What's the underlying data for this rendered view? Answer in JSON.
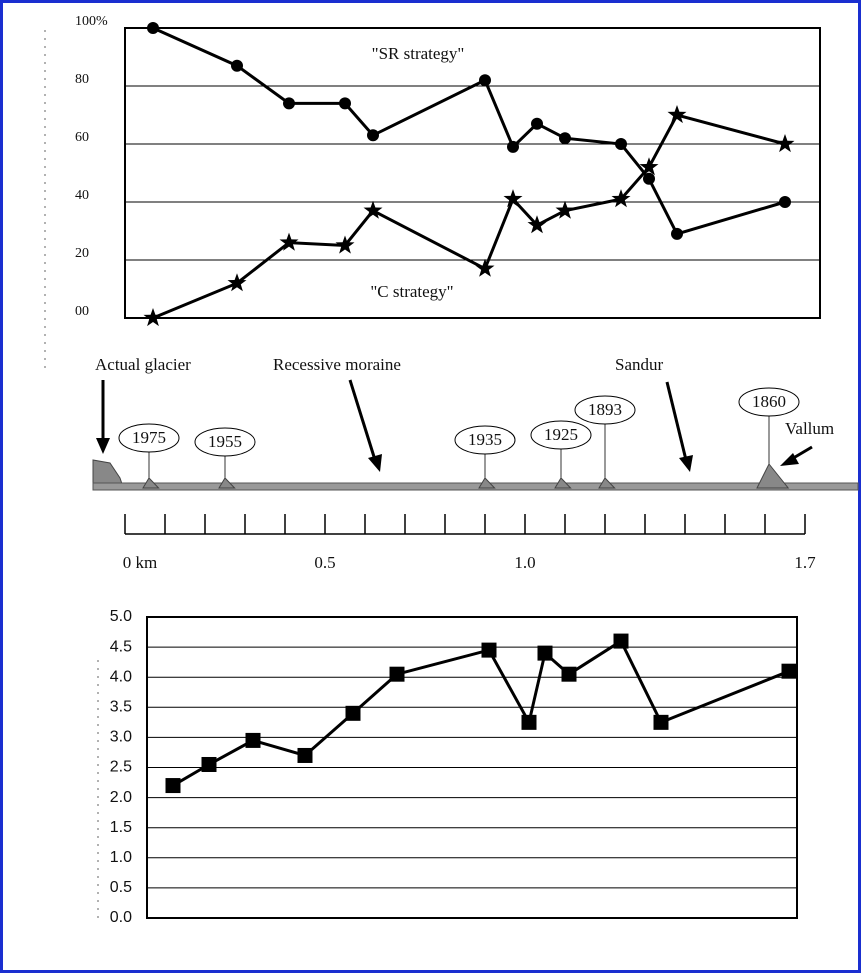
{
  "chart_data": [
    {
      "type": "line",
      "x": [
        0.07,
        0.28,
        0.41,
        0.55,
        0.62,
        0.9,
        0.97,
        1.03,
        1.1,
        1.24,
        1.31,
        1.38,
        1.65
      ],
      "xlim": [
        0,
        1.7375
      ],
      "ylim": [
        0,
        100
      ],
      "yticks": [
        {
          "value": 0,
          "label": "00"
        },
        20,
        40,
        60,
        80,
        {
          "value": 100,
          "label": "100%"
        }
      ],
      "grid": true,
      "annotations": [
        "\"SR strategy\"",
        "\"C strategy\""
      ],
      "series": [
        {
          "marker": "circle",
          "color": "#000000",
          "values": [
            100,
            87,
            74,
            74,
            63,
            82,
            59,
            67,
            62,
            60,
            48,
            29,
            40
          ]
        },
        {
          "marker": "star",
          "color": "#000000",
          "values": [
            0,
            12,
            26,
            25,
            37,
            17,
            41,
            32,
            37,
            41,
            52,
            70,
            60
          ]
        }
      ]
    },
    {
      "type": "line",
      "x": [
        0.12,
        0.21,
        0.32,
        0.45,
        0.57,
        0.68,
        0.91,
        1.01,
        1.05,
        1.11,
        1.24,
        1.34,
        1.66
      ],
      "xlim": [
        0.055,
        1.68
      ],
      "ylim": [
        0,
        5
      ],
      "yticks": [
        {
          "value": 0,
          "label": "0.0"
        },
        0.5,
        {
          "value": 1,
          "label": "1.0"
        },
        1.5,
        {
          "value": 2,
          "label": "2.0"
        },
        2.5,
        {
          "value": 3,
          "label": "3.0"
        },
        3.5,
        {
          "value": 4,
          "label": "4.0"
        },
        4.5,
        {
          "value": 5,
          "label": "5.0"
        }
      ],
      "grid": true,
      "series": [
        {
          "marker": "square",
          "color": "#000000",
          "values": [
            2.2,
            2.55,
            2.95,
            2.7,
            3.4,
            4.05,
            4.45,
            3.25,
            4.4,
            4.05,
            4.6,
            3.25,
            4.1
          ]
        }
      ]
    }
  ],
  "transect": {
    "labels": [
      "Actual glacier",
      "Recessive moraine",
      "Sandur",
      "Vallum"
    ],
    "markers": [
      {
        "label": "1975",
        "km": 0.06
      },
      {
        "label": "1955",
        "km": 0.25
      },
      {
        "label": "1935",
        "km": 0.9
      },
      {
        "label": "1925",
        "km": 1.09
      },
      {
        "label": "1893",
        "km": 1.2
      },
      {
        "label": "1860",
        "km": 1.61
      }
    ],
    "kmticks": [
      0,
      0.1,
      0.2,
      0.3,
      0.4,
      0.5,
      0.6,
      0.7,
      0.8,
      0.9,
      1.0,
      1.1,
      1.2,
      1.3,
      1.4,
      1.5,
      1.6,
      1.7
    ],
    "kmlabels": [
      {
        "value": 0,
        "label": "0 km"
      },
      0.5,
      {
        "value": 1,
        "label": "1.0"
      },
      1.7
    ]
  }
}
